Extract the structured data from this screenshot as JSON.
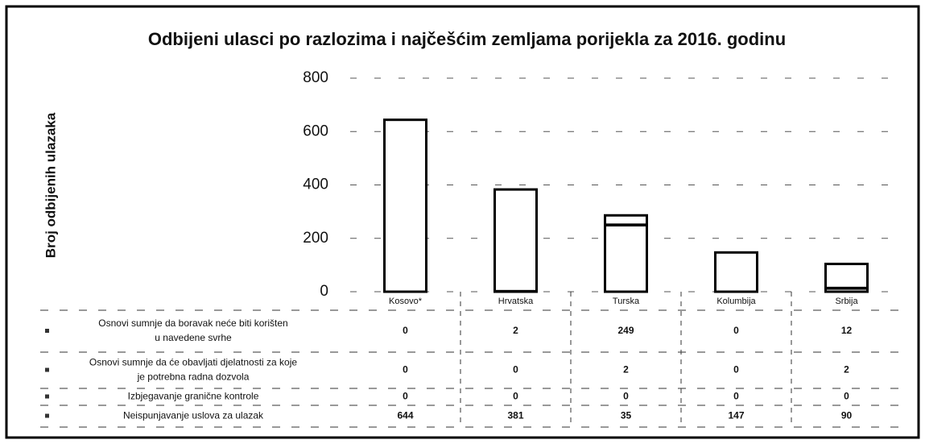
{
  "chart_data": {
    "type": "bar",
    "stacked": true,
    "title": "Odbijeni ulasci po razlozima i najčešćim zemljama porijekla za 2016. godinu",
    "ylabel": "Broj odbijenih ulazaka",
    "categories": [
      "Kosovo*",
      "Hrvatska",
      "Turska",
      "Kolumbija",
      "Srbija"
    ],
    "series": [
      {
        "name": "Osnovi sumnje da boravak neće biti korišten u navedene svrhe",
        "color": "#ffffff",
        "values": [
          0,
          2,
          249,
          0,
          12
        ]
      },
      {
        "name": "Osnovi sumnje da će obavljati djelatnosti za koje je potrebna radna dozvola",
        "color": "#ffffff",
        "values": [
          0,
          0,
          2,
          0,
          2
        ]
      },
      {
        "name": "Izbjegavanje granične kontrole",
        "color": "#ffffff",
        "values": [
          0,
          0,
          0,
          0,
          0
        ]
      },
      {
        "name": "Neispunjavanje uslova za ulazak",
        "color": "#ffffff",
        "values": [
          644,
          381,
          35,
          147,
          90
        ]
      }
    ],
    "ylim": [
      0,
      800
    ],
    "yticks": [
      0,
      200,
      400,
      600,
      800
    ],
    "grid": true
  }
}
